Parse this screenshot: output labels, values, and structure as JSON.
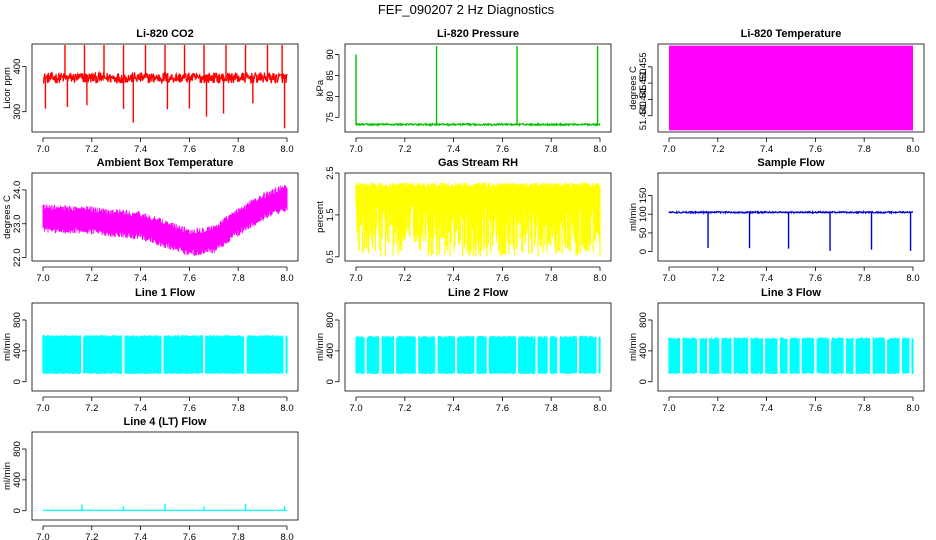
{
  "figure": {
    "title": "FEF_090207  2 Hz Diagnostics"
  },
  "chart_data": [
    {
      "id": "co2",
      "type": "line",
      "title": "Li-820 CO2",
      "ylabel": "Licor ppm",
      "color": "#ff0000",
      "xlim": [
        7.0,
        8.0
      ],
      "ylim": [
        255,
        450
      ],
      "x_ticks": [
        "7.0",
        "7.2",
        "7.4",
        "7.6",
        "7.8",
        "8.0"
      ],
      "y_ticks": [
        "300",
        "400"
      ],
      "series": [
        {
          "baseline": 375,
          "noise": 12,
          "spike_up_to": 450,
          "spike_down_to": 260,
          "spikes_up_x": [
            7.09,
            7.17,
            7.25,
            7.33,
            7.42,
            7.5,
            7.58,
            7.66,
            7.75,
            7.83,
            7.92,
            7.98
          ],
          "spikes_down_x": [
            7.01,
            7.1,
            7.18,
            7.33,
            7.37,
            7.51,
            7.6,
            7.67,
            7.74,
            7.86,
            7.99
          ]
        }
      ]
    },
    {
      "id": "pressure",
      "type": "line",
      "title": "Li-820 Pressure",
      "ylabel": "kPa",
      "color": "#00c000",
      "xlim": [
        7.0,
        8.0
      ],
      "ylim": [
        71.5,
        92.5
      ],
      "x_ticks": [
        "7.0",
        "7.2",
        "7.4",
        "7.6",
        "7.8",
        "8.0"
      ],
      "y_ticks": [
        "75",
        "80",
        "85",
        "90"
      ],
      "series": [
        {
          "baseline": 73.3,
          "noise": 0.2,
          "spikes_up_x": [
            7.0,
            7.33,
            7.66,
            7.99
          ],
          "spike_up_to": [
            90,
            92,
            92,
            92
          ]
        }
      ]
    },
    {
      "id": "licor_temp",
      "type": "area",
      "title": "Li-820 Temperature",
      "ylabel": "degrees C",
      "color": "#ff00ff",
      "xlim": [
        7.0,
        8.0
      ],
      "ylim": [
        51.435,
        51.462
      ],
      "x_ticks": [
        "7.0",
        "7.2",
        "7.4",
        "7.6",
        "7.8",
        "8.0"
      ],
      "y_ticks": [
        "51.440",
        "51.445",
        "51.450",
        "51.455"
      ],
      "series": [
        {
          "band_low": 51.4355,
          "band_high": 51.4615
        }
      ]
    },
    {
      "id": "box_temp",
      "type": "line",
      "title": "Ambient Box Temperature",
      "ylabel": "degrees C",
      "color": "#ff00ff",
      "xlim": [
        7.0,
        8.0
      ],
      "ylim": [
        21.9,
        24.5
      ],
      "x_ticks": [
        "7.0",
        "7.2",
        "7.4",
        "7.6",
        "7.8",
        "8.0"
      ],
      "y_ticks": [
        "22.0",
        "23.0",
        "24.0"
      ],
      "series": [
        {
          "trend_x": [
            7.0,
            7.2,
            7.4,
            7.6,
            7.7,
            7.8,
            7.9,
            8.0
          ],
          "trend_y": [
            23.15,
            23.1,
            22.95,
            22.45,
            22.55,
            23.05,
            23.5,
            23.8
          ],
          "band": 0.35
        }
      ]
    },
    {
      "id": "rh",
      "type": "line",
      "title": "Gas Stream RH",
      "ylabel": "percent",
      "color": "#ffff00",
      "xlim": [
        7.0,
        8.0
      ],
      "ylim": [
        0.4,
        2.5
      ],
      "x_ticks": [
        "7.0",
        "7.2",
        "7.4",
        "7.6",
        "7.8",
        "8.0"
      ],
      "y_ticks": [
        "0.5",
        "1.5",
        "2.5"
      ],
      "series": [
        {
          "top": 2.2,
          "low_min": 0.5,
          "low_max": 1.9
        }
      ]
    },
    {
      "id": "sample_flow",
      "type": "line",
      "title": "Sample Flow",
      "ylabel": "ml/min",
      "color": "#0000cd",
      "xlim": [
        7.0,
        8.0
      ],
      "ylim": [
        -25,
        210
      ],
      "x_ticks": [
        "7.0",
        "7.2",
        "7.4",
        "7.6",
        "7.8",
        "8.0"
      ],
      "y_ticks": [
        "0",
        "50",
        "100",
        "150"
      ],
      "series": [
        {
          "baseline": 105,
          "noise": 2,
          "dips_x": [
            7.16,
            7.33,
            7.49,
            7.66,
            7.83,
            7.99
          ],
          "dip_to": 0
        }
      ]
    },
    {
      "id": "line1",
      "type": "line",
      "title": "Line 1 Flow",
      "ylabel": "ml/min",
      "color": "#00ffff",
      "xlim": [
        7.0,
        8.0
      ],
      "ylim": [
        -120,
        1020
      ],
      "x_ticks": [
        "7.0",
        "7.2",
        "7.4",
        "7.6",
        "7.8",
        "8.0"
      ],
      "y_ticks": [
        "0",
        "400",
        "800"
      ],
      "series": [
        {
          "low": 110,
          "high": 590,
          "gaps_x": [
            7.16,
            7.33,
            7.49,
            7.66,
            7.83,
            7.99
          ]
        }
      ]
    },
    {
      "id": "line2",
      "type": "line",
      "title": "Line 2 Flow",
      "ylabel": "ml/min",
      "color": "#00ffff",
      "xlim": [
        7.0,
        8.0
      ],
      "ylim": [
        -120,
        1020
      ],
      "x_ticks": [
        "7.0",
        "7.2",
        "7.4",
        "7.6",
        "7.8",
        "8.0"
      ],
      "y_ticks": [
        "0",
        "400",
        "800"
      ],
      "series": [
        {
          "low": 110,
          "high": 580,
          "gaps_x": [
            7.04,
            7.1,
            7.16,
            7.25,
            7.33,
            7.41,
            7.49,
            7.54,
            7.66,
            7.74,
            7.79,
            7.83,
            7.91,
            7.99
          ]
        }
      ]
    },
    {
      "id": "line3",
      "type": "line",
      "title": "Line 3 Flow",
      "ylabel": "ml/min",
      "color": "#00ffff",
      "xlim": [
        7.0,
        8.0
      ],
      "ylim": [
        -120,
        1020
      ],
      "x_ticks": [
        "7.0",
        "7.2",
        "7.4",
        "7.6",
        "7.8",
        "8.0"
      ],
      "y_ticks": [
        "0",
        "400",
        "800"
      ],
      "series": [
        {
          "low": 110,
          "high": 560,
          "gaps_x": [
            7.05,
            7.12,
            7.16,
            7.21,
            7.26,
            7.33,
            7.39,
            7.45,
            7.49,
            7.54,
            7.6,
            7.66,
            7.72,
            7.76,
            7.83,
            7.89,
            7.95,
            7.99
          ]
        }
      ]
    },
    {
      "id": "line4",
      "type": "line",
      "title": "Line 4 (LT) Flow",
      "ylabel": "ml/min",
      "color": "#00ffff",
      "xlim": [
        7.0,
        8.0
      ],
      "ylim": [
        -120,
        1020
      ],
      "x_ticks": [
        "7.0",
        "7.2",
        "7.4",
        "7.6",
        "7.8",
        "8.0"
      ],
      "y_ticks": [
        "0",
        "400",
        "800"
      ],
      "series": [
        {
          "baseline": 5,
          "spikes_x": [
            7.16,
            7.33,
            7.5,
            7.66,
            7.83,
            7.99
          ],
          "spike_to": [
            80,
            60,
            90,
            55,
            85,
            60
          ]
        }
      ]
    }
  ]
}
